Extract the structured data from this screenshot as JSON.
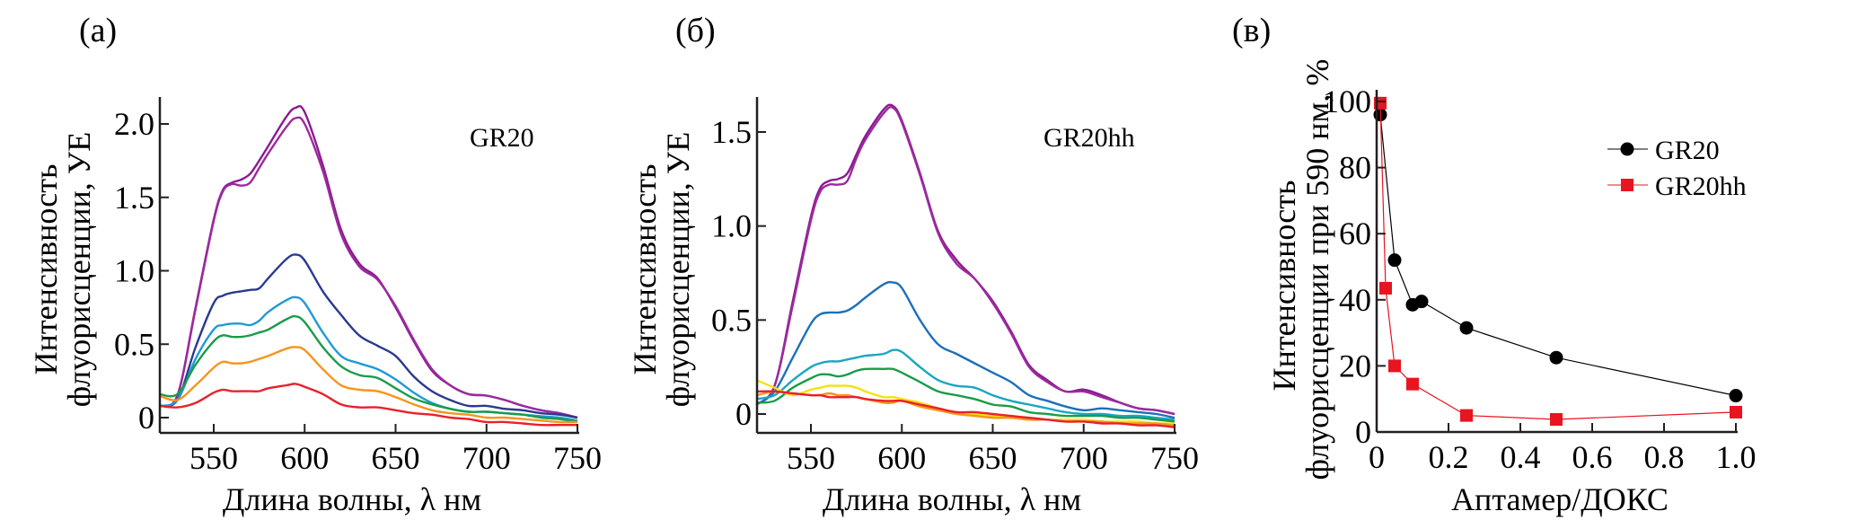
{
  "chart_data": [
    {
      "id": "a",
      "type": "line",
      "panel_label": "(a)",
      "annotation": "GR20",
      "xlabel": "Длина волны, λ нм",
      "ylabel": [
        "Интенсивность",
        "флуорисценции, УЕ"
      ],
      "xlim": [
        520,
        752
      ],
      "ylim": [
        -0.08,
        2.18
      ],
      "xticks": [
        550,
        600,
        650,
        700,
        750
      ],
      "xtick_labels": [
        "550",
        "600",
        "650",
        "700",
        "750"
      ],
      "yticks": [
        0,
        0.5,
        1.0,
        1.5,
        2.0
      ],
      "ytick_labels": [
        "0",
        "0.5",
        "1.0",
        "1.5",
        "2.0"
      ],
      "grid": false,
      "x": [
        520,
        530,
        540,
        550,
        555,
        560,
        565,
        570,
        575,
        580,
        590,
        595,
        600,
        610,
        620,
        630,
        640,
        650,
        660,
        670,
        680,
        690,
        700,
        710,
        720,
        730,
        740,
        750
      ],
      "series": [
        {
          "name": "purple-1",
          "color": "#8b1a8f",
          "values": [
            0.08,
            0.15,
            0.75,
            1.35,
            1.55,
            1.6,
            1.62,
            1.66,
            1.75,
            1.85,
            2.05,
            2.11,
            2.08,
            1.72,
            1.28,
            1.05,
            0.95,
            0.75,
            0.52,
            0.32,
            0.22,
            0.16,
            0.15,
            0.12,
            0.08,
            0.05,
            0.03,
            0.0
          ]
        },
        {
          "name": "purple-2",
          "color": "#9b2a9f",
          "values": [
            0.08,
            0.15,
            0.74,
            1.34,
            1.54,
            1.59,
            1.58,
            1.6,
            1.7,
            1.8,
            1.98,
            2.04,
            2.0,
            1.68,
            1.25,
            1.03,
            0.94,
            0.76,
            0.53,
            0.33,
            0.22,
            0.16,
            0.15,
            0.12,
            0.08,
            0.05,
            0.03,
            0.0
          ]
        },
        {
          "name": "navy",
          "color": "#2b3990",
          "values": [
            0.08,
            0.12,
            0.48,
            0.78,
            0.83,
            0.85,
            0.86,
            0.87,
            0.88,
            0.95,
            1.08,
            1.11,
            1.07,
            0.86,
            0.7,
            0.56,
            0.49,
            0.42,
            0.28,
            0.18,
            0.12,
            0.08,
            0.08,
            0.06,
            0.05,
            0.03,
            0.02,
            0.0
          ]
        },
        {
          "name": "light-blue",
          "color": "#1e9ad6",
          "values": [
            0.08,
            0.12,
            0.4,
            0.6,
            0.63,
            0.64,
            0.64,
            0.63,
            0.66,
            0.72,
            0.8,
            0.82,
            0.78,
            0.58,
            0.42,
            0.37,
            0.33,
            0.26,
            0.17,
            0.1,
            0.06,
            0.04,
            0.04,
            0.03,
            0.02,
            0.01,
            0.0,
            -0.02
          ]
        },
        {
          "name": "green",
          "color": "#1a9b48",
          "values": [
            0.16,
            0.16,
            0.36,
            0.52,
            0.56,
            0.55,
            0.55,
            0.56,
            0.58,
            0.6,
            0.67,
            0.69,
            0.65,
            0.48,
            0.35,
            0.29,
            0.27,
            0.2,
            0.13,
            0.09,
            0.06,
            0.04,
            0.04,
            0.03,
            0.02,
            0.0,
            -0.01,
            -0.03
          ]
        },
        {
          "name": "orange",
          "color": "#f7941d",
          "values": [
            0.15,
            0.12,
            0.22,
            0.34,
            0.38,
            0.37,
            0.37,
            0.38,
            0.4,
            0.42,
            0.47,
            0.48,
            0.46,
            0.33,
            0.22,
            0.19,
            0.18,
            0.14,
            0.09,
            0.05,
            0.03,
            0.02,
            0.0,
            0.0,
            -0.01,
            -0.02,
            -0.03,
            -0.03
          ]
        },
        {
          "name": "red",
          "color": "#e8212b",
          "values": [
            0.08,
            0.07,
            0.1,
            0.17,
            0.19,
            0.18,
            0.18,
            0.18,
            0.18,
            0.2,
            0.22,
            0.23,
            0.21,
            0.16,
            0.09,
            0.07,
            0.07,
            0.05,
            0.03,
            0.02,
            0.0,
            -0.01,
            -0.03,
            -0.03,
            -0.04,
            -0.05,
            -0.05,
            -0.05
          ]
        }
      ]
    },
    {
      "id": "b",
      "type": "line",
      "panel_label": "(б)",
      "annotation": "GR20hh",
      "xlabel": "Длина волны, λ нм",
      "ylabel": [
        "Интенсивность",
        "флуорисценции, УЕ"
      ],
      "xlim": [
        520,
        752
      ],
      "ylim": [
        -0.1,
        1.68
      ],
      "xticks": [
        550,
        600,
        650,
        700,
        750
      ],
      "xtick_labels": [
        "550",
        "600",
        "650",
        "700",
        "750"
      ],
      "yticks": [
        0,
        0.5,
        1.0,
        1.5
      ],
      "ytick_labels": [
        "0",
        "0.5",
        "1.0",
        "1.5"
      ],
      "grid": false,
      "x": [
        520,
        530,
        540,
        550,
        555,
        560,
        565,
        570,
        575,
        580,
        590,
        595,
        600,
        610,
        620,
        630,
        640,
        650,
        660,
        670,
        680,
        690,
        700,
        710,
        720,
        730,
        740,
        750
      ],
      "series": [
        {
          "name": "purple-1",
          "color": "#8b1a8f",
          "values": [
            0.05,
            0.15,
            0.6,
            1.05,
            1.2,
            1.24,
            1.25,
            1.28,
            1.38,
            1.48,
            1.62,
            1.64,
            1.56,
            1.28,
            0.97,
            0.82,
            0.72,
            0.6,
            0.44,
            0.26,
            0.18,
            0.12,
            0.13,
            0.1,
            0.06,
            0.03,
            0.02,
            0.0
          ]
        },
        {
          "name": "purple-2",
          "color": "#9b2a9f",
          "values": [
            0.05,
            0.15,
            0.58,
            1.03,
            1.18,
            1.22,
            1.22,
            1.24,
            1.36,
            1.46,
            1.6,
            1.63,
            1.55,
            1.27,
            0.96,
            0.8,
            0.72,
            0.59,
            0.43,
            0.25,
            0.17,
            0.12,
            0.12,
            0.09,
            0.06,
            0.03,
            0.02,
            0.0
          ]
        },
        {
          "name": "blue",
          "color": "#1c6fb8",
          "values": [
            0.05,
            0.12,
            0.3,
            0.48,
            0.53,
            0.54,
            0.54,
            0.55,
            0.58,
            0.62,
            0.69,
            0.7,
            0.67,
            0.5,
            0.37,
            0.32,
            0.27,
            0.22,
            0.17,
            0.1,
            0.07,
            0.04,
            0.02,
            0.03,
            0.02,
            0.01,
            0.0,
            -0.02
          ]
        },
        {
          "name": "teal",
          "color": "#1aa6c0",
          "values": [
            0.08,
            0.1,
            0.18,
            0.25,
            0.27,
            0.28,
            0.28,
            0.29,
            0.3,
            0.31,
            0.32,
            0.34,
            0.33,
            0.25,
            0.18,
            0.15,
            0.14,
            0.1,
            0.07,
            0.05,
            0.03,
            0.01,
            0.0,
            0.0,
            -0.01,
            -0.01,
            -0.02,
            -0.03
          ]
        },
        {
          "name": "green",
          "color": "#1a9b48",
          "values": [
            0.06,
            0.07,
            0.14,
            0.19,
            0.21,
            0.21,
            0.2,
            0.21,
            0.23,
            0.24,
            0.24,
            0.24,
            0.22,
            0.17,
            0.12,
            0.1,
            0.08,
            0.05,
            0.04,
            0.01,
            0.0,
            -0.01,
            -0.01,
            -0.01,
            -0.02,
            -0.02,
            -0.03,
            -0.04
          ]
        },
        {
          "name": "yellow",
          "color": "#f5e10f",
          "values": [
            0.18,
            0.14,
            0.1,
            0.13,
            0.14,
            0.15,
            0.15,
            0.15,
            0.14,
            0.12,
            0.09,
            0.09,
            0.08,
            0.06,
            0.03,
            0.01,
            0.0,
            -0.01,
            -0.02,
            -0.02,
            -0.03,
            -0.03,
            -0.03,
            -0.04,
            -0.04,
            -0.04,
            -0.05,
            -0.05
          ]
        },
        {
          "name": "orange",
          "color": "#f7941d",
          "values": [
            0.1,
            0.12,
            0.11,
            0.1,
            0.1,
            0.11,
            0.1,
            0.1,
            0.09,
            0.08,
            0.06,
            0.06,
            0.07,
            0.04,
            0.02,
            0.0,
            -0.01,
            -0.02,
            -0.02,
            -0.03,
            -0.03,
            -0.04,
            -0.04,
            -0.04,
            -0.05,
            -0.05,
            -0.05,
            -0.06
          ]
        },
        {
          "name": "red",
          "color": "#e8212b",
          "values": [
            0.12,
            0.12,
            0.11,
            0.1,
            0.1,
            0.09,
            0.09,
            0.09,
            0.09,
            0.08,
            0.07,
            0.07,
            0.07,
            0.05,
            0.03,
            0.01,
            0.01,
            0.0,
            -0.01,
            -0.02,
            -0.03,
            -0.04,
            -0.04,
            -0.05,
            -0.05,
            -0.06,
            -0.06,
            -0.07
          ]
        }
      ]
    },
    {
      "id": "v",
      "type": "line",
      "panel_label": "(в)",
      "xlabel": "Аптамер/ДОКС",
      "ylabel": [
        "Интенсивность",
        "флуорисценции при 590 нм, %"
      ],
      "xlim": [
        0,
        1.0
      ],
      "ylim": [
        0,
        100
      ],
      "xticks": [
        0,
        0.2,
        0.4,
        0.6,
        0.8,
        1.0
      ],
      "xtick_labels": [
        "0",
        "0.2",
        "0.4",
        "0.6",
        "0.8",
        "1.0"
      ],
      "yticks": [
        0,
        20,
        40,
        60,
        80,
        100
      ],
      "ytick_labels": [
        "0",
        "20",
        "40",
        "60",
        "80",
        "100"
      ],
      "grid": false,
      "legend_position": "top-right",
      "series": [
        {
          "name": "GR20",
          "color": "#000000",
          "marker": "circle",
          "x": [
            0.01,
            0.05,
            0.1,
            0.125,
            0.25,
            0.5,
            1.0
          ],
          "values": [
            96,
            52,
            38.5,
            39.5,
            31.5,
            22.5,
            11
          ]
        },
        {
          "name": "GR20hh",
          "color": "#e8141f",
          "marker": "square",
          "x": [
            0.01,
            0.025,
            0.05,
            0.1,
            0.25,
            0.5,
            1.0
          ],
          "values": [
            99.5,
            43.5,
            20,
            14.5,
            5,
            3.8,
            6
          ]
        }
      ]
    }
  ]
}
